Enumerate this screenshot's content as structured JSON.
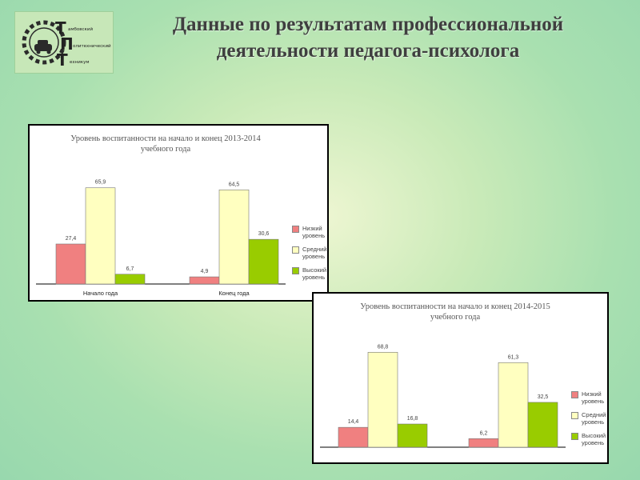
{
  "logo": {
    "letters": [
      "Т",
      "П",
      "Т"
    ],
    "words": [
      "амбовский",
      "олитехнический",
      "ехникум"
    ]
  },
  "slide": {
    "title": "Данные по результатам профессиональной деятельности педагога-психолога"
  },
  "colors": {
    "low": "#f08080",
    "mid": "#ffffc0",
    "high": "#99cc00"
  },
  "chart_data": [
    {
      "type": "bar",
      "title": "Уровень воспитанности на начало и конец 2013-2014 учебного года",
      "categories": [
        "Начало года",
        "Конец года"
      ],
      "series": [
        {
          "name": "Низкий уровень",
          "values": [
            27.4,
            4.9
          ]
        },
        {
          "name": "Средний уровень",
          "values": [
            65.9,
            64.5
          ]
        },
        {
          "name": "Высокий уровень",
          "values": [
            6.7,
            30.6
          ]
        }
      ],
      "value_labels": [
        [
          "27,4",
          "4,9"
        ],
        [
          "65,9",
          "64,5"
        ],
        [
          "6,7",
          "30,6"
        ]
      ],
      "ylim": [
        0,
        80
      ],
      "grid": false,
      "legend": "right"
    },
    {
      "type": "bar",
      "title": "Уровень воспитанности на начало и конец 2014-2015 учебного года",
      "categories": [
        "",
        ""
      ],
      "series": [
        {
          "name": "Низкий уровень",
          "values": [
            14.4,
            6.2
          ]
        },
        {
          "name": "Средний уровень",
          "values": [
            68.8,
            61.3
          ]
        },
        {
          "name": "Высокий уровень",
          "values": [
            16.8,
            32.5
          ]
        }
      ],
      "value_labels": [
        [
          "14,4",
          "6,2"
        ],
        [
          "68,8",
          "61,3"
        ],
        [
          "16,8",
          "32,5"
        ]
      ],
      "ylim": [
        0,
        80
      ],
      "grid": false,
      "legend": "right"
    }
  ]
}
